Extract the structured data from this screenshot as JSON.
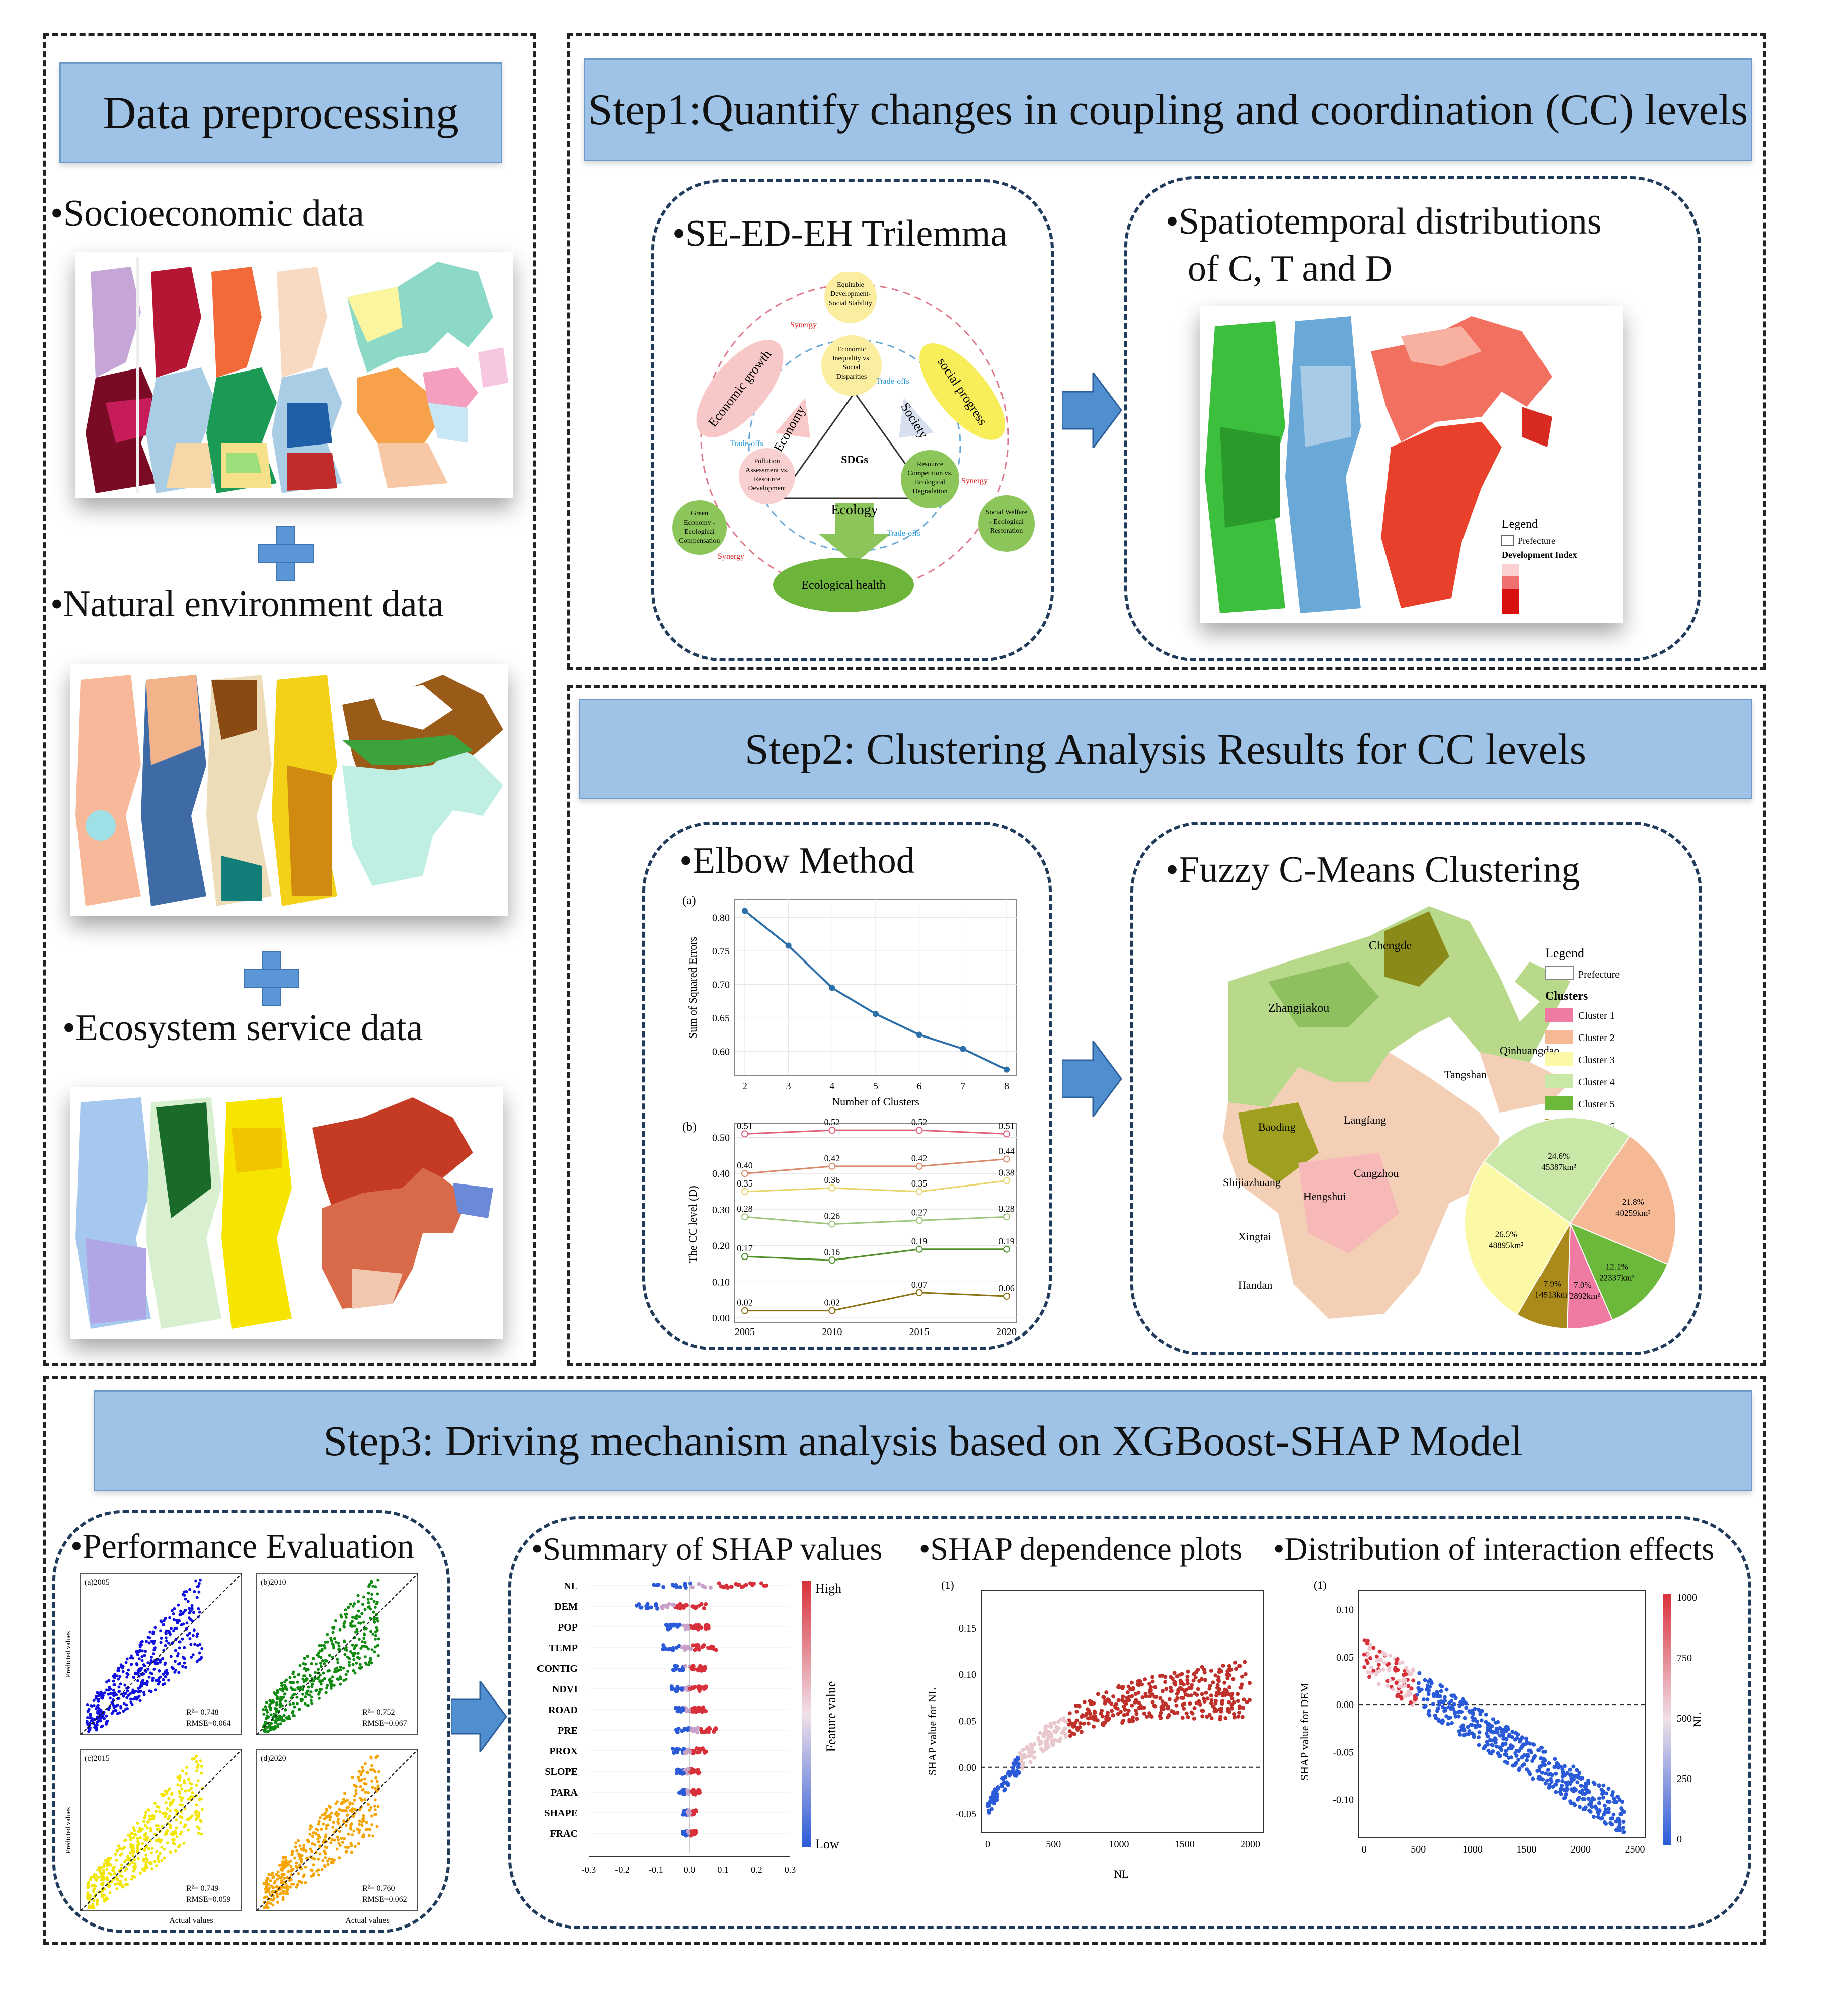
{
  "left": {
    "banner": "Data preprocessing",
    "items": [
      {
        "label": "•Socioeconomic data"
      },
      {
        "label": "•Natural environment data"
      },
      {
        "label": "•Ecosystem service data"
      }
    ]
  },
  "step1": {
    "banner": "Step1:Quantify changes in coupling and coordination (CC) levels",
    "panel_a_title": "•SE-ED-EH Trilemma",
    "panel_b_title_1": "•Spatiotemporal distributions",
    "panel_b_title_2": "of C, T and D",
    "trilemma": {
      "top_node": [
        "Equitable",
        "Development-",
        "Social Stability"
      ],
      "center_top": [
        "Economic",
        "Inequality vs.",
        "Social",
        "Disparities"
      ],
      "left_mid": [
        "Pollution",
        "Assessment vs.",
        "Resource",
        "Development"
      ],
      "right_mid": [
        "Resource",
        "Competition vs.",
        "Ecological",
        "Degradation"
      ],
      "left_bottom": [
        "Green",
        "Economy -",
        "Ecological",
        "Compensation"
      ],
      "right_bottom": [
        "Social Welfare",
        "- Ecological",
        "Restoration"
      ],
      "economic_growth": "Economic growth",
      "social_progress": "social progress",
      "ecological_health": "Ecological health",
      "economy": "Economy",
      "society": "Society",
      "ecology": "Ecology",
      "sdgs": "SDGs",
      "synergy": "Synergy",
      "tradeoffs": "Trade-offs"
    },
    "map_legend": {
      "title": "Legend",
      "prefecture": "Prefecture",
      "index": "Development Index"
    }
  },
  "step2": {
    "banner": "Step2: Clustering Analysis Results for CC levels",
    "panel_a_title": "•Elbow Method",
    "panel_b_title": "•Fuzzy C-Means Clustering",
    "legend_title": "Legend",
    "legend_prefecture": "Prefecture",
    "legend_clusters": "Clusters",
    "clusters": [
      {
        "name": "Cluster 1",
        "color": "#ef7aa2"
      },
      {
        "name": "Cluster 2",
        "color": "#f5b995"
      },
      {
        "name": "Cluster 3",
        "color": "#fbf8a6"
      },
      {
        "name": "Cluster 4",
        "color": "#c9e8a8"
      },
      {
        "name": "Cluster 5",
        "color": "#6bb83a"
      },
      {
        "name": "Cluster 6",
        "color": "#a98a1a"
      }
    ],
    "pie_labels": [
      "24.6%\n45387km²",
      "21.8%\n40259km²",
      "12.1%\n22337km²",
      "7.0%\n12892km²",
      "7.9%\n14513km²",
      "26.5%\n48895km²"
    ],
    "city_labels": [
      "Zhangjiakou",
      "Chengde",
      "Qinhuangdao",
      "Tangshan",
      "Baoding",
      "Langfang",
      "Cangzhou",
      "Shijiazhuang",
      "Hengshui",
      "Xingtai",
      "Handan"
    ]
  },
  "step3": {
    "banner": "Step3: Driving mechanism analysis based on XGBoost-SHAP Model",
    "panel_a_title": "•Performance Evaluation",
    "summary_title": "•Summary of SHAP values",
    "dependence_title": "•SHAP dependence plots",
    "interaction_title": "•Distribution of interaction effects",
    "perf": [
      {
        "tag": "(a)2005",
        "r2": "R²= 0.748",
        "rmse": "RMSE=0.064",
        "color": "#1010e0"
      },
      {
        "tag": "(b)2010",
        "r2": "R²= 0.752",
        "rmse": "RMSE=0.067",
        "color": "#108a10"
      },
      {
        "tag": "(c)2015",
        "r2": "R²= 0.749",
        "rmse": "RMSE=0.059",
        "color": "#f2e600"
      },
      {
        "tag": "(d)2020",
        "r2": "R²= 0.760",
        "rmse": "RMSE=0.062",
        "color": "#f5a300"
      }
    ],
    "perf_xlabel": "Actual values",
    "perf_ylabel": "Predicted values",
    "features": [
      "NL",
      "DEM",
      "POP",
      "TEMP",
      "CONTIG",
      "NDVI",
      "ROAD",
      "PRE",
      "PROX",
      "SLOPE",
      "PARA",
      "SHAPE",
      "FRAC"
    ],
    "summary_xticks": [
      "-0.3",
      "-0.2",
      "-0.1",
      "0.0",
      "0.1",
      "0.2",
      "0.3"
    ],
    "colorbar_high": "High",
    "colorbar_low": "Low",
    "colorbar_label": "Feature value",
    "dep_tag": "(1)",
    "dep_ylabel": "SHAP value for NL",
    "dep_xlabel": "NL",
    "dep_yticks": [
      "0.15",
      "0.10",
      "0.05",
      "0.00",
      "-0.05"
    ],
    "dep_xticks": [
      "0",
      "500",
      "1000",
      "1500",
      "2000"
    ],
    "int_tag": "(1)",
    "int_ylabel": "SHAP value for DEM",
    "int_yticks": [
      "0.10",
      "0.05",
      "0.00",
      "-0.05",
      "-0.10"
    ],
    "int_xticks": [
      "0",
      "500",
      "1000",
      "1500",
      "2000",
      "2500"
    ],
    "int_cbar_ticks": [
      "1000",
      "750",
      "500",
      "250",
      "0"
    ],
    "int_cbar_label": "NL"
  },
  "chart_data": [
    {
      "type": "line",
      "panel": "(a)",
      "x": [
        2,
        3,
        4,
        5,
        6,
        7,
        8
      ],
      "values": [
        0.81,
        0.758,
        0.695,
        0.656,
        0.625,
        0.604,
        0.573
      ],
      "xlabel": "Number of Clusters",
      "ylabel": "Sum of Squared Errors",
      "ylim": [
        0.575,
        0.82
      ],
      "yticks": [
        "0.80",
        "0.75",
        "0.70",
        "0.65",
        "0.60"
      ],
      "xticks": [
        "2",
        "3",
        "4",
        "5",
        "6",
        "7",
        "8"
      ],
      "color": "#2c6ea8"
    },
    {
      "type": "line",
      "panel": "(b)",
      "categories": [
        "2005",
        "2010",
        "2015",
        "2020"
      ],
      "ylabel": "The CC level (D)",
      "ylim": [
        0,
        0.53
      ],
      "yticks": [
        "0.50",
        "0.40",
        "0.30",
        "0.20",
        "0.10",
        "0.00"
      ],
      "series": [
        {
          "values": [
            0.51,
            0.52,
            0.52,
            0.51
          ],
          "labels": [
            "0.51",
            "0.52",
            "0.52",
            "0.51"
          ],
          "color": "#e0607a"
        },
        {
          "values": [
            0.4,
            0.42,
            0.42,
            0.44
          ],
          "labels": [
            "0.40",
            "0.42",
            "0.42",
            "0.44"
          ],
          "color": "#d98a6a"
        },
        {
          "values": [
            0.35,
            0.36,
            0.35,
            0.38
          ],
          "labels": [
            "0.35",
            "0.36",
            "0.35",
            "0.38"
          ],
          "color": "#e8d46a"
        },
        {
          "values": [
            0.28,
            0.26,
            0.27,
            0.28
          ],
          "labels": [
            "0.28",
            "0.26",
            "0.27",
            "0.28"
          ],
          "color": "#9cc77a"
        },
        {
          "values": [
            0.17,
            0.16,
            0.19,
            0.19
          ],
          "labels": [
            "0.17",
            "0.16",
            "0.19",
            "0.19"
          ],
          "color": "#4f8f2a"
        },
        {
          "values": [
            0.02,
            0.02,
            0.07,
            0.06
          ],
          "labels": [
            "0.02",
            "0.02",
            "0.07",
            "0.06"
          ],
          "color": "#8a7010"
        }
      ]
    },
    {
      "type": "pie",
      "values": [
        24.6,
        21.8,
        12.1,
        7.0,
        7.9,
        26.5
      ],
      "colors": [
        "#c9e8a8",
        "#f5b995",
        "#6bb83a",
        "#ef7aa2",
        "#a98a1a",
        "#fbf8a6"
      ]
    }
  ]
}
